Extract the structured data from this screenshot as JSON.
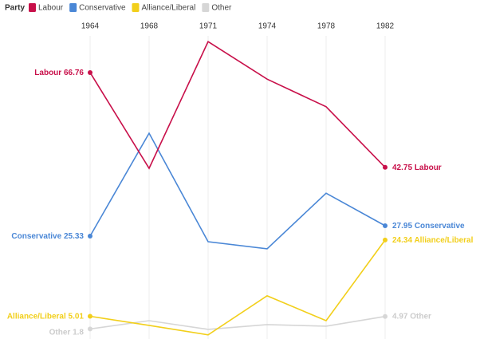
{
  "chart_data": {
    "type": "line",
    "legend_title": "Party",
    "categories": [
      "1964",
      "1968",
      "1971",
      "1974",
      "1978",
      "1982"
    ],
    "series": [
      {
        "name": "Labour",
        "color": "#c8104a",
        "values": [
          66.76,
          42.5,
          74.6,
          65.1,
          58.1,
          42.75
        ]
      },
      {
        "name": "Conservative",
        "color": "#4a87d6",
        "values": [
          25.33,
          51.4,
          23.9,
          22.1,
          36.2,
          27.95
        ]
      },
      {
        "name": "Alliance/Liberal",
        "color": "#f2cf1b",
        "values": [
          5.01,
          2.7,
          0.3,
          10.2,
          3.9,
          24.34
        ]
      },
      {
        "name": "Other",
        "color": "#d6d6d6",
        "values": [
          1.8,
          3.9,
          1.7,
          2.9,
          2.5,
          4.97
        ]
      }
    ],
    "ylim": [
      0,
      75
    ],
    "grid": true
  }
}
